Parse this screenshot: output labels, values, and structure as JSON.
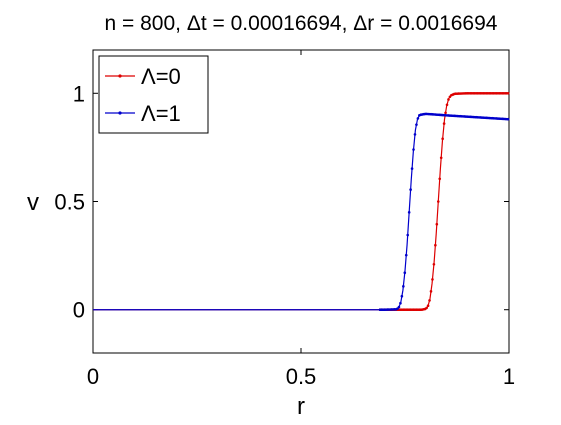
{
  "chart_data": {
    "type": "line",
    "title": "n = 800, Δt = 0.00016694, Δr = 0.0016694",
    "xlabel": "r",
    "ylabel": "v",
    "xlim": [
      0,
      1
    ],
    "ylim": [
      -0.2,
      1.2
    ],
    "xticks": [
      "0",
      "0.5",
      "1"
    ],
    "yticks": [
      "0",
      "0.5",
      "1"
    ],
    "grid": false,
    "legend_position": "top-left",
    "series": [
      {
        "name": "Λ=0",
        "color": "#dd0000",
        "marker": "dot",
        "points": [
          [
            0,
            0
          ],
          [
            0.73,
            0
          ],
          [
            0.76,
            0
          ],
          [
            0.79,
            0
          ],
          [
            0.8,
            0.004
          ],
          [
            0.805,
            0.015
          ],
          [
            0.81,
            0.05
          ],
          [
            0.815,
            0.12
          ],
          [
            0.82,
            0.22
          ],
          [
            0.825,
            0.35
          ],
          [
            0.83,
            0.5
          ],
          [
            0.835,
            0.65
          ],
          [
            0.84,
            0.78
          ],
          [
            0.845,
            0.88
          ],
          [
            0.85,
            0.94
          ],
          [
            0.855,
            0.975
          ],
          [
            0.86,
            0.99
          ],
          [
            0.87,
            0.998
          ],
          [
            0.9,
            1.0
          ],
          [
            1.0,
            1.0
          ]
        ]
      },
      {
        "name": "Λ=1",
        "color": "#0000cc",
        "marker": "dot",
        "points": [
          [
            0,
            0
          ],
          [
            0.7,
            0
          ],
          [
            0.73,
            0.002
          ],
          [
            0.735,
            0.01
          ],
          [
            0.74,
            0.035
          ],
          [
            0.745,
            0.09
          ],
          [
            0.75,
            0.18
          ],
          [
            0.755,
            0.3
          ],
          [
            0.76,
            0.45
          ],
          [
            0.765,
            0.6
          ],
          [
            0.77,
            0.73
          ],
          [
            0.775,
            0.83
          ],
          [
            0.78,
            0.88
          ],
          [
            0.785,
            0.9
          ],
          [
            0.8,
            0.905
          ],
          [
            0.85,
            0.898
          ],
          [
            0.9,
            0.892
          ],
          [
            0.95,
            0.886
          ],
          [
            1.0,
            0.88
          ]
        ]
      }
    ]
  }
}
